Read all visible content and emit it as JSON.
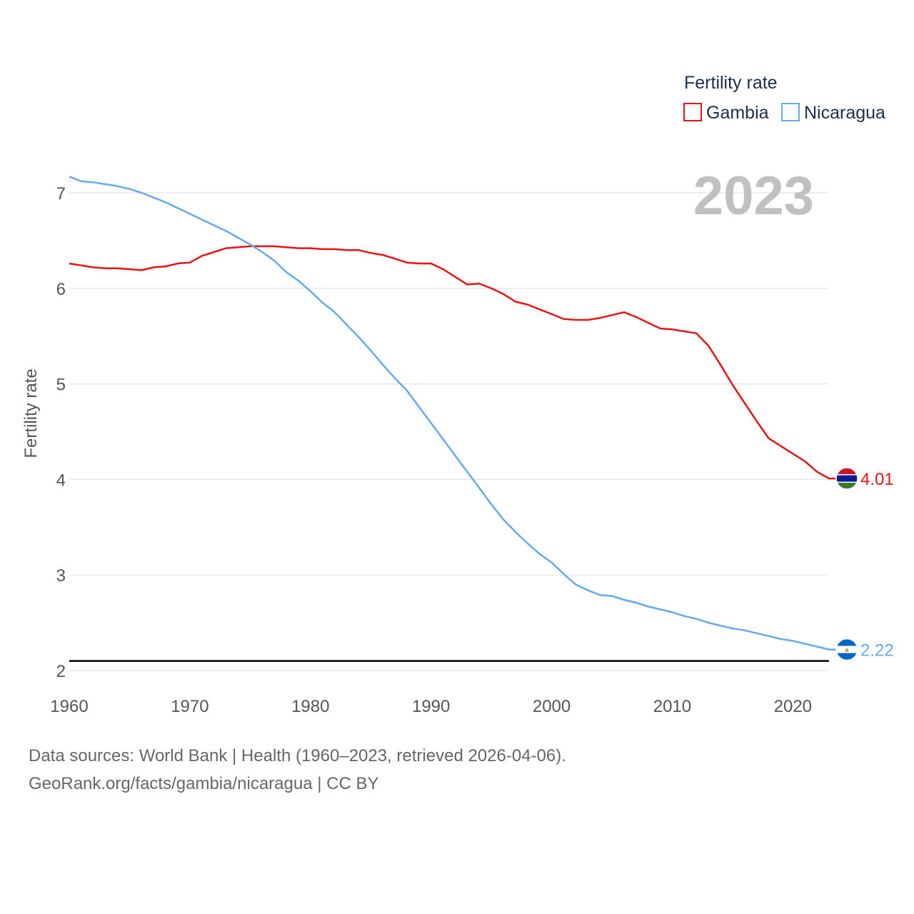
{
  "colors": {
    "gambia": "#ee1111",
    "nicaragua": "#66aaee",
    "grid": "#e4e4e4",
    "refline": "#000000"
  },
  "chart_data": {
    "type": "line",
    "title": "Fertility rate",
    "current_year_label": "2023",
    "xlabel": "",
    "ylabel": "Fertility rate",
    "xlim": [
      1960,
      2023
    ],
    "ylim": [
      1.95,
      7.25
    ],
    "x_ticks": [
      "1960",
      "1970",
      "1980",
      "1990",
      "2000",
      "2010",
      "2020"
    ],
    "y_ticks": [
      "2",
      "3",
      "4",
      "5",
      "6",
      "7"
    ],
    "reference_line": 2.1,
    "legend_position": "top-right",
    "years": [
      1960,
      1961,
      1962,
      1963,
      1964,
      1965,
      1966,
      1967,
      1968,
      1969,
      1970,
      1971,
      1972,
      1973,
      1974,
      1975,
      1976,
      1977,
      1978,
      1979,
      1980,
      1981,
      1982,
      1983,
      1984,
      1985,
      1986,
      1987,
      1988,
      1989,
      1990,
      1991,
      1992,
      1993,
      1994,
      1995,
      1996,
      1997,
      1998,
      1999,
      2000,
      2001,
      2002,
      2003,
      2004,
      2005,
      2006,
      2007,
      2008,
      2009,
      2010,
      2011,
      2012,
      2013,
      2014,
      2015,
      2016,
      2017,
      2018,
      2019,
      2020,
      2021,
      2022,
      2023
    ],
    "series": [
      {
        "name": "Gambia",
        "color": "#ee1111",
        "end_label": "4.01",
        "values": [
          6.26,
          6.24,
          6.22,
          6.21,
          6.21,
          6.2,
          6.19,
          6.22,
          6.23,
          6.26,
          6.27,
          6.34,
          6.38,
          6.42,
          6.43,
          6.44,
          6.44,
          6.44,
          6.43,
          6.42,
          6.42,
          6.41,
          6.41,
          6.4,
          6.4,
          6.37,
          6.35,
          6.31,
          6.27,
          6.26,
          6.26,
          6.2,
          6.12,
          6.04,
          6.05,
          6.0,
          5.94,
          5.86,
          5.83,
          5.78,
          5.73,
          5.68,
          5.67,
          5.67,
          5.69,
          5.72,
          5.75,
          5.7,
          5.64,
          5.58,
          5.57,
          5.55,
          5.53,
          5.4,
          5.2,
          4.99,
          4.8,
          4.61,
          4.43,
          4.35,
          4.27,
          4.19,
          4.08,
          4.01
        ]
      },
      {
        "name": "Nicaragua",
        "color": "#66aaee",
        "end_label": "2.22",
        "values": [
          7.17,
          7.12,
          7.11,
          7.09,
          7.07,
          7.04,
          7.0,
          6.95,
          6.9,
          6.84,
          6.78,
          6.72,
          6.66,
          6.6,
          6.53,
          6.46,
          6.38,
          6.29,
          6.17,
          6.08,
          5.97,
          5.85,
          5.75,
          5.62,
          5.49,
          5.35,
          5.2,
          5.06,
          4.93,
          4.76,
          4.59,
          4.42,
          4.25,
          4.08,
          3.91,
          3.74,
          3.58,
          3.45,
          3.33,
          3.22,
          3.13,
          3.01,
          2.9,
          2.84,
          2.79,
          2.78,
          2.74,
          2.71,
          2.67,
          2.64,
          2.61,
          2.57,
          2.54,
          2.5,
          2.47,
          2.44,
          2.42,
          2.39,
          2.36,
          2.33,
          2.31,
          2.28,
          2.25,
          2.22
        ]
      }
    ]
  },
  "source": {
    "line1": "Data sources: World Bank | Health (1960–2023, retrieved 2026-04-06).",
    "line2": "GeoRank.org/facts/gambia/nicaragua | CC BY"
  }
}
